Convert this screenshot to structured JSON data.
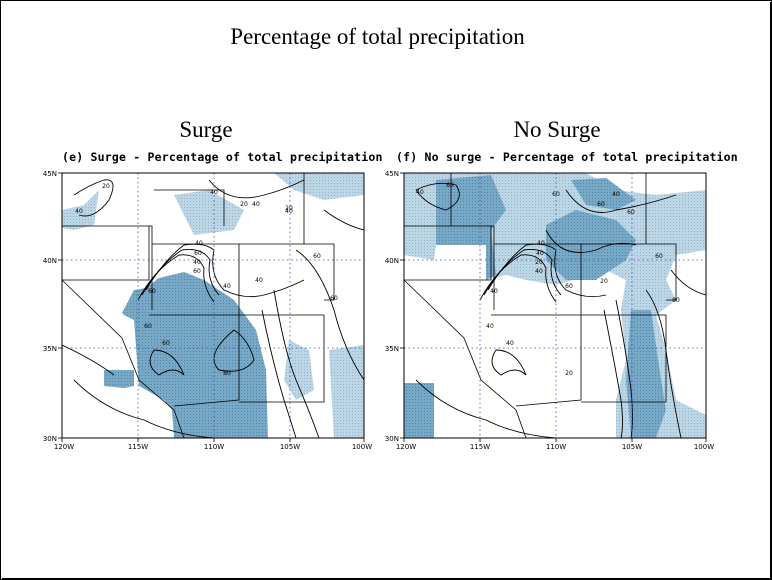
{
  "title": "Percentage of total precipitation",
  "panels": [
    {
      "label": "Surge",
      "map_title": "(e) Surge - Percentage of total precipitation",
      "lat_labels": [
        "45N",
        "40N",
        "35N",
        "30N"
      ],
      "lon_labels": [
        "120W",
        "115W",
        "110W",
        "105W",
        "100W"
      ],
      "contour_labels": [
        "20",
        "40",
        "20",
        "40",
        "40",
        "20",
        "40",
        "60",
        "40",
        "60",
        "40",
        "60",
        "60",
        "60",
        "40",
        "60",
        "80",
        "40",
        "60"
      ]
    },
    {
      "label": "No Surge",
      "map_title": "(f) No surge - Percentage of total precipitation",
      "lat_labels": [
        "45N",
        "40N",
        "35N",
        "30N"
      ],
      "lon_labels": [
        "120W",
        "115W",
        "110W",
        "105W",
        "100W"
      ],
      "contour_labels": [
        "40",
        "60",
        "60",
        "60",
        "40",
        "60",
        "40",
        "40",
        "20",
        "40",
        "60",
        "80",
        "40",
        "20",
        "40",
        "40",
        "20",
        "60"
      ]
    }
  ],
  "colors": {
    "shade": "#77a8c6",
    "shade_light": "#bdd6e6",
    "line": "#000000"
  }
}
